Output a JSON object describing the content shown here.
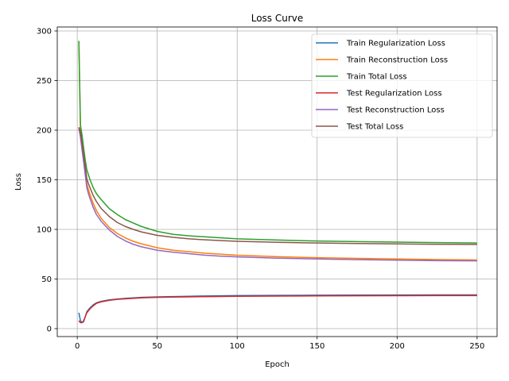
{
  "chart_data": {
    "type": "line",
    "title": "Loss Curve",
    "xlabel": "Epoch",
    "ylabel": "Loss",
    "xlim": [
      -12.5,
      262.5
    ],
    "ylim": [
      -8,
      304
    ],
    "xticks": [
      0,
      50,
      100,
      150,
      200,
      250
    ],
    "yticks": [
      0,
      50,
      100,
      150,
      200,
      250,
      300
    ],
    "grid": true,
    "legend_position": "top-right",
    "x": [
      1,
      2,
      3,
      4,
      5,
      6,
      7,
      8,
      10,
      12,
      15,
      20,
      25,
      30,
      35,
      40,
      50,
      60,
      70,
      80,
      90,
      100,
      125,
      150,
      175,
      200,
      225,
      250
    ],
    "series": [
      {
        "name": "Train Regularization Loss",
        "color": "#1f77b4",
        "values": [
          16,
          8,
          6,
          8,
          12,
          17,
          19,
          21,
          24,
          26,
          27.5,
          29,
          29.8,
          30.5,
          31,
          31.5,
          32,
          32.3,
          32.6,
          32.9,
          33.1,
          33.3,
          33.5,
          33.7,
          33.8,
          33.9,
          34,
          34
        ]
      },
      {
        "name": "Train Reconstruction Loss",
        "color": "#ff7f0e",
        "values": [
          290,
          200,
          188,
          172,
          158,
          146,
          140,
          135,
          126,
          119,
          111,
          102,
          96,
          91.5,
          88,
          85.5,
          81.5,
          79,
          77.5,
          76,
          75,
          74,
          72.5,
          71.5,
          70.8,
          70.2,
          69.6,
          69.2
        ]
      },
      {
        "name": "Train Total Loss",
        "color": "#2ca02c",
        "values": [
          290,
          205,
          195,
          182,
          170,
          160,
          155,
          150,
          142,
          136,
          130,
          121,
          115,
          110,
          106.5,
          103,
          98,
          95,
          93.5,
          92.5,
          91.5,
          90.5,
          89.3,
          88.3,
          87.7,
          87.2,
          86.7,
          86.3
        ]
      },
      {
        "name": "Test Regularization Loss",
        "color": "#d62728",
        "values": [
          8,
          6,
          6,
          7,
          12,
          16,
          18,
          20,
          23,
          25.5,
          27,
          28.5,
          29.5,
          30,
          30.5,
          31,
          31.5,
          31.8,
          32,
          32.2,
          32.4,
          32.6,
          32.8,
          33,
          33.1,
          33.2,
          33.3,
          33.3
        ]
      },
      {
        "name": "Test Reconstruction Loss",
        "color": "#9467bd",
        "values": [
          202,
          193,
          180,
          168,
          155,
          142,
          136,
          131,
          122,
          115,
          108,
          99.5,
          93,
          88.5,
          85,
          82.5,
          79,
          77,
          75.5,
          74,
          73,
          72.3,
          71,
          70.2,
          69.5,
          69,
          68.5,
          68.3
        ]
      },
      {
        "name": "Test Total Loss",
        "color": "#8c564b",
        "values": [
          203,
          198,
          187,
          175,
          163,
          151,
          146,
          142,
          134,
          128,
          121,
          113,
          107,
          103,
          100,
          97.5,
          94,
          92,
          90.5,
          89.5,
          88.7,
          88,
          87,
          86.3,
          85.8,
          85.4,
          85,
          84.8
        ]
      }
    ]
  }
}
